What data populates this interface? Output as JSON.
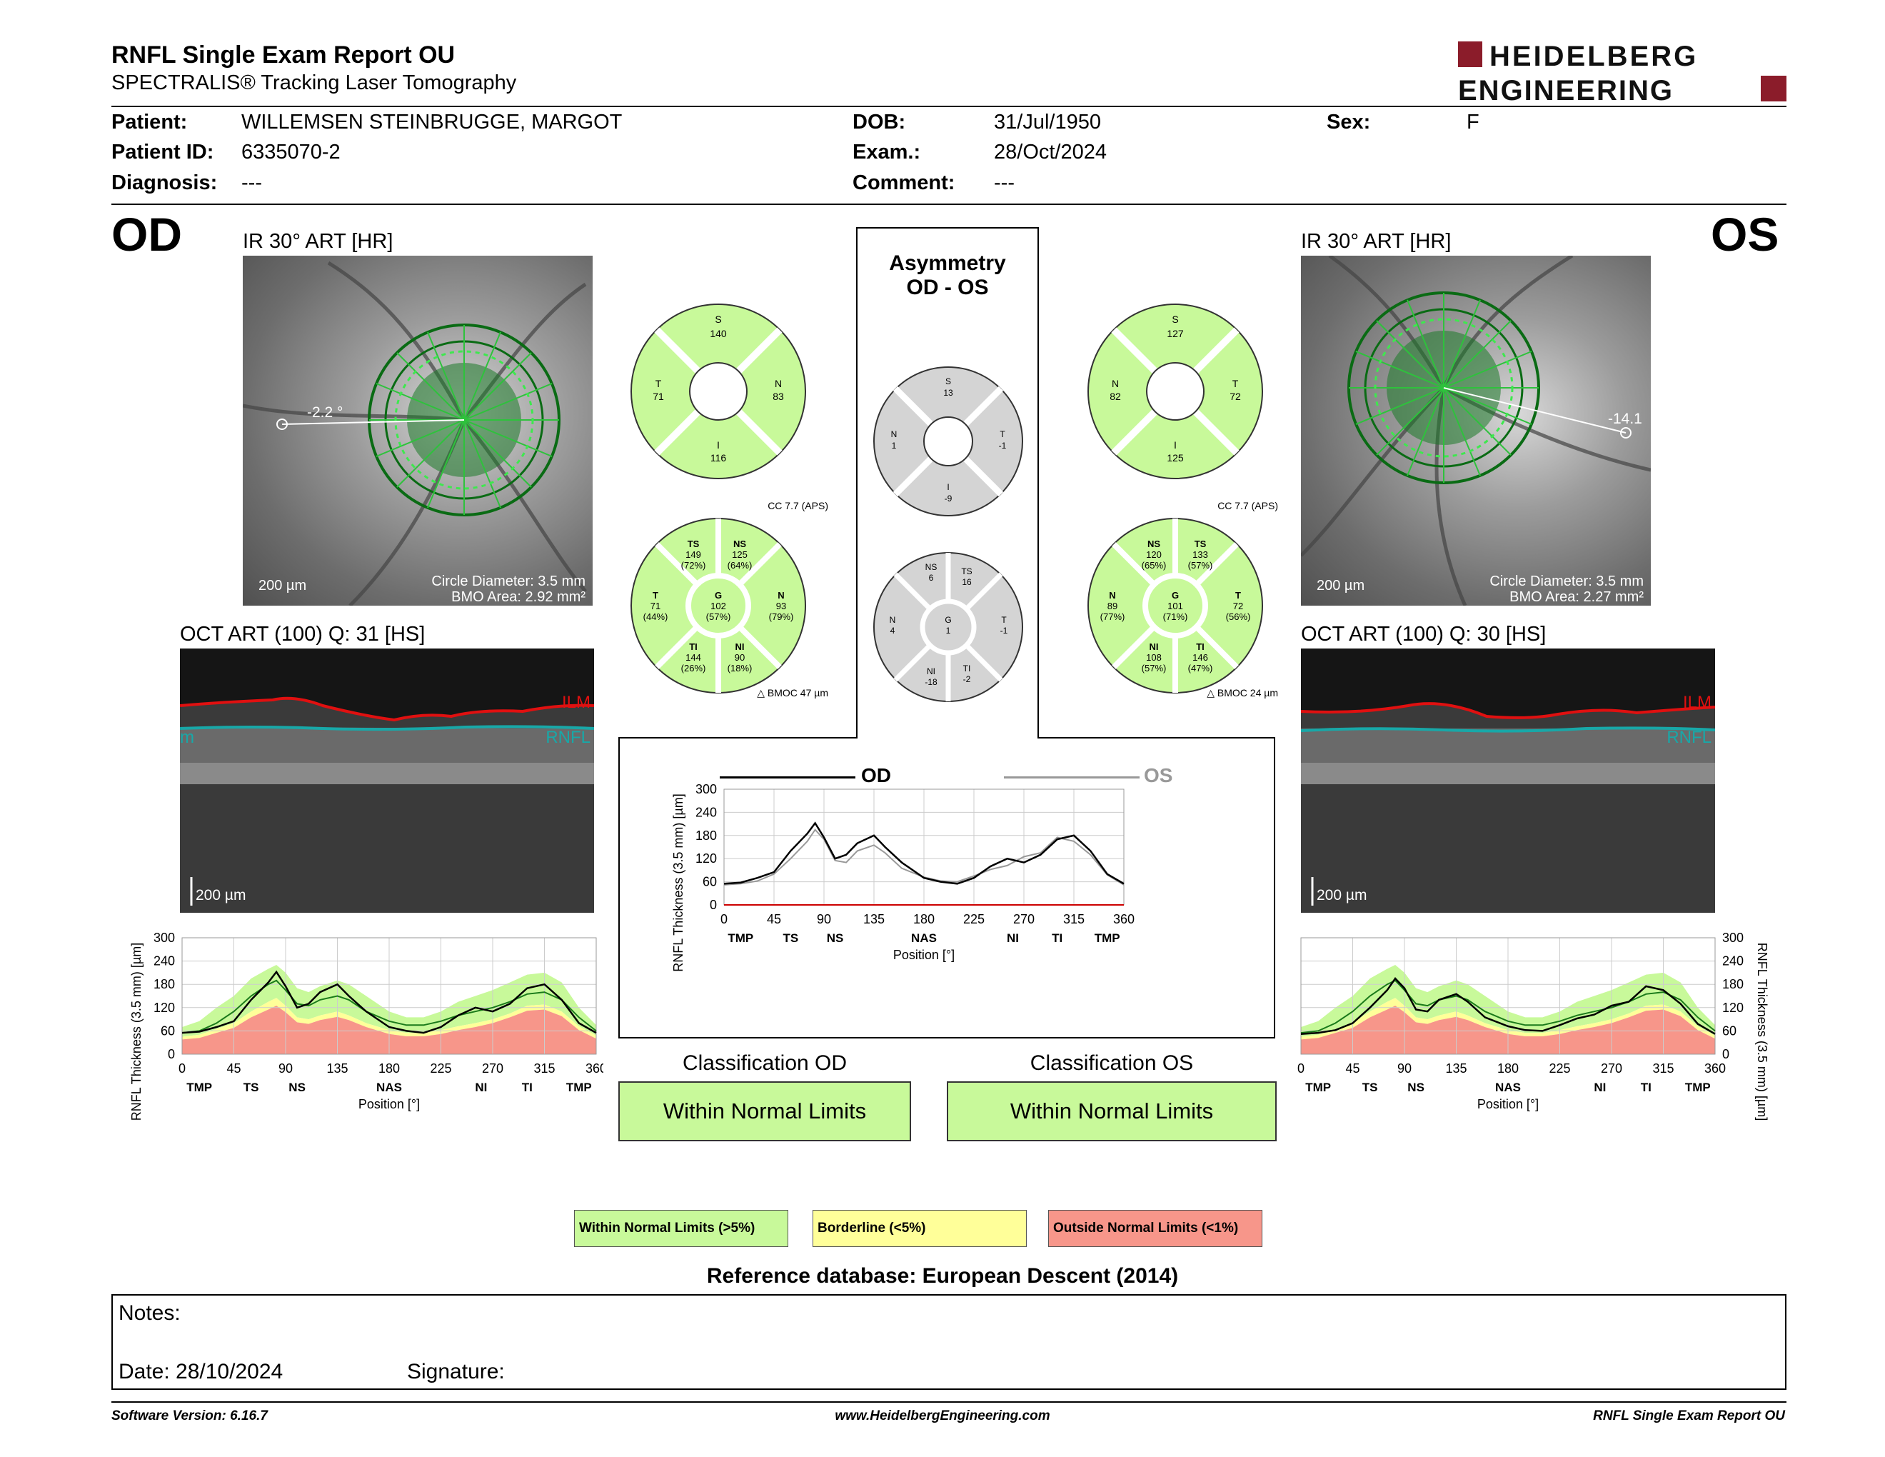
{
  "header": {
    "title": "RNFL Single Exam Report OU",
    "subtitle": "SPECTRALIS® Tracking Laser Tomography",
    "brand_line1": "HEIDELBERG",
    "brand_line2": "ENGINEERING"
  },
  "patient": {
    "patient_label": "Patient:",
    "patient_value": "WILLEMSEN STEINBRUGGE, MARGOT",
    "id_label": "Patient ID:",
    "id_value": "6335070-2",
    "diagnosis_label": "Diagnosis:",
    "diagnosis_value": "---",
    "dob_label": "DOB:",
    "dob_value": "31/Jul/1950",
    "exam_label": "Exam.:",
    "exam_value": "28/Oct/2024",
    "comment_label": "Comment:",
    "comment_value": "---",
    "sex_label": "Sex:",
    "sex_value": "F"
  },
  "od": {
    "eye": "OD",
    "ir_title": "IR 30° ART [HR]",
    "angle": "-2.2 °",
    "scale_bar": "200 µm",
    "circle_diameter": "Circle Diameter: 3.5 mm",
    "bmo_area": "BMO Area: 2.92 mm²",
    "oct_title": "OCT ART (100) Q: 31 [HS]",
    "oct_scale": "200 µm",
    "ilm": "ILM",
    "rnfl": "RNFL",
    "rnfl_edge": "m",
    "quad": {
      "S": "140",
      "T": "71",
      "N": "83",
      "I": "116"
    },
    "cc": "CC 7.7 (APS)",
    "sectors": {
      "TS": [
        "TS",
        "149",
        "(72%)"
      ],
      "NS": [
        "NS",
        "125",
        "(64%)"
      ],
      "T": [
        "T",
        "71",
        "(44%)"
      ],
      "G": [
        "G",
        "102",
        "(57%)"
      ],
      "N": [
        "N",
        "93",
        "(79%)"
      ],
      "TI": [
        "TI",
        "144",
        "(26%)"
      ],
      "NI": [
        "NI",
        "90",
        "(18%)"
      ]
    },
    "bmoc": "BMOC 47 µm",
    "classification_title": "Classification OD",
    "classification": "Within Normal Limits"
  },
  "os": {
    "eye": "OS",
    "ir_title": "IR 30° ART [HR]",
    "angle": "-14.1",
    "scale_bar": "200 µm",
    "circle_diameter": "Circle Diameter: 3.5 mm",
    "bmo_area": "BMO Area: 2.27 mm²",
    "oct_title": "OCT ART (100) Q: 30 [HS]",
    "oct_scale": "200 µm",
    "ilm": "ILM",
    "rnfl": "RNFL",
    "quad": {
      "S": "127",
      "N": "82",
      "T": "72",
      "I": "125"
    },
    "cc": "CC 7.7 (APS)",
    "sectors": {
      "NS": [
        "NS",
        "120",
        "(65%)"
      ],
      "TS": [
        "TS",
        "133",
        "(57%)"
      ],
      "N": [
        "N",
        "89",
        "(77%)"
      ],
      "G": [
        "G",
        "101",
        "(71%)"
      ],
      "T": [
        "T",
        "72",
        "(56%)"
      ],
      "NI": [
        "NI",
        "108",
        "(57%)"
      ],
      "TI": [
        "TI",
        "146",
        "(47%)"
      ]
    },
    "bmoc": "BMOC 24 µm",
    "classification_title": "Classification OS",
    "classification": "Within Normal Limits"
  },
  "asymmetry": {
    "title_line1": "Asymmetry",
    "title_line2": "OD - OS",
    "quad": {
      "S": "13",
      "N": "1",
      "T": "-1",
      "I": "-9"
    },
    "sectors": {
      "NS": [
        "NS",
        "6"
      ],
      "TS": [
        "TS",
        "16"
      ],
      "N": [
        "N",
        "4"
      ],
      "G": [
        "G",
        "1"
      ],
      "T": [
        "T",
        "-1"
      ],
      "NI": [
        "NI",
        "-18"
      ],
      "TI": [
        "TI",
        "-2"
      ]
    },
    "legend_od": "OD",
    "legend_os": "OS"
  },
  "chart_data": [
    {
      "type": "line",
      "name": "od_profile",
      "ylabel": "RNFL Thickness (3.5 mm) [µm]",
      "xlabel": "Position [°]",
      "xlim": [
        0,
        360
      ],
      "ylim": [
        0,
        300
      ],
      "x_ticks": [
        "0",
        "45",
        "90",
        "135",
        "180",
        "225",
        "270",
        "315",
        "360"
      ],
      "y_ticks": [
        "0",
        "60",
        "120",
        "180",
        "240",
        "300"
      ],
      "sector_labels": [
        "TMP",
        "TS",
        "NS",
        "NAS",
        "NI",
        "TI",
        "TMP"
      ],
      "sector_positions": [
        15,
        60,
        100,
        180,
        260,
        300,
        345
      ],
      "x": [
        0,
        15,
        30,
        45,
        60,
        75,
        82,
        90,
        100,
        110,
        120,
        135,
        145,
        160,
        180,
        195,
        210,
        225,
        240,
        255,
        270,
        285,
        300,
        315,
        330,
        345,
        360
      ],
      "series": [
        {
          "values": [
            55,
            58,
            70,
            85,
            140,
            185,
            212,
            175,
            120,
            130,
            160,
            180,
            150,
            110,
            70,
            60,
            55,
            70,
            100,
            120,
            110,
            130,
            170,
            180,
            140,
            80,
            55
          ]
        },
        {
          "values": [
            55,
            60,
            80,
            110,
            150,
            180,
            190,
            165,
            130,
            125,
            140,
            150,
            140,
            110,
            85,
            75,
            75,
            85,
            100,
            110,
            120,
            135,
            155,
            160,
            140,
            95,
            60
          ]
        },
        {
          "values": [
            70,
            85,
            120,
            150,
            195,
            220,
            230,
            210,
            170,
            160,
            175,
            190,
            180,
            150,
            110,
            95,
            95,
            110,
            135,
            150,
            165,
            185,
            205,
            210,
            185,
            120,
            75
          ]
        },
        {
          "values": [
            45,
            50,
            65,
            80,
            110,
            135,
            145,
            125,
            95,
            90,
            100,
            110,
            100,
            80,
            62,
            55,
            55,
            62,
            72,
            80,
            90,
            105,
            125,
            128,
            110,
            72,
            48
          ]
        },
        {
          "values": [
            38,
            42,
            55,
            68,
            95,
            115,
            125,
            108,
            82,
            78,
            88,
            96,
            88,
            70,
            52,
            46,
            46,
            52,
            62,
            70,
            80,
            95,
            112,
            115,
            98,
            62,
            40
          ]
        }
      ]
    },
    {
      "type": "line",
      "name": "asymmetry_profile",
      "ylabel": "RNFL Thickness (3.5 mm) [µm]",
      "xlabel": "Position [°]",
      "xlim": [
        0,
        360
      ],
      "ylim": [
        0,
        300
      ],
      "x_ticks": [
        "0",
        "45",
        "90",
        "135",
        "180",
        "225",
        "270",
        "315",
        "360"
      ],
      "y_ticks": [
        "0",
        "60",
        "120",
        "180",
        "240",
        "300"
      ],
      "sector_labels": [
        "TMP",
        "TS",
        "NS",
        "NAS",
        "NI",
        "TI",
        "TMP"
      ],
      "sector_positions": [
        15,
        60,
        100,
        180,
        260,
        300,
        345
      ],
      "x": [
        0,
        15,
        30,
        45,
        60,
        75,
        82,
        90,
        100,
        110,
        120,
        135,
        145,
        160,
        180,
        195,
        210,
        225,
        240,
        255,
        270,
        285,
        300,
        315,
        330,
        345,
        360
      ],
      "series": [
        {
          "name": "OD",
          "values": [
            55,
            58,
            70,
            85,
            140,
            185,
            212,
            175,
            120,
            130,
            160,
            180,
            150,
            110,
            70,
            60,
            55,
            70,
            100,
            120,
            110,
            130,
            170,
            180,
            140,
            80,
            55
          ]
        },
        {
          "name": "OS",
          "values": [
            52,
            55,
            62,
            80,
            120,
            165,
            195,
            170,
            115,
            110,
            140,
            155,
            135,
            95,
            72,
            62,
            60,
            75,
            92,
            102,
            125,
            135,
            175,
            165,
            130,
            78,
            52
          ]
        }
      ]
    },
    {
      "type": "line",
      "name": "os_profile",
      "ylabel": "RNFL Thickness (3.5 mm) [µm]",
      "xlabel": "Position [°]",
      "xlim": [
        0,
        360
      ],
      "ylim": [
        0,
        300
      ],
      "x_ticks": [
        "0",
        "45",
        "90",
        "135",
        "180",
        "225",
        "270",
        "315",
        "360"
      ],
      "y_ticks": [
        "0",
        "60",
        "120",
        "180",
        "240",
        "300"
      ],
      "sector_labels": [
        "TMP",
        "TS",
        "NS",
        "NAS",
        "NI",
        "TI",
        "TMP"
      ],
      "sector_positions": [
        15,
        60,
        100,
        180,
        260,
        300,
        345
      ],
      "x": [
        0,
        15,
        30,
        45,
        60,
        75,
        82,
        90,
        100,
        110,
        120,
        135,
        145,
        160,
        180,
        195,
        210,
        225,
        240,
        255,
        270,
        285,
        300,
        315,
        330,
        345,
        360
      ],
      "series": [
        {
          "values": [
            52,
            55,
            62,
            80,
            120,
            165,
            195,
            170,
            115,
            110,
            140,
            155,
            135,
            95,
            72,
            62,
            60,
            75,
            92,
            102,
            125,
            135,
            175,
            165,
            130,
            78,
            52
          ]
        },
        {
          "values": [
            55,
            60,
            80,
            110,
            150,
            180,
            190,
            165,
            130,
            125,
            140,
            150,
            140,
            110,
            85,
            75,
            75,
            85,
            100,
            110,
            120,
            135,
            155,
            160,
            140,
            95,
            60
          ]
        },
        {
          "values": [
            70,
            85,
            120,
            150,
            195,
            220,
            230,
            210,
            170,
            160,
            175,
            190,
            180,
            150,
            110,
            95,
            95,
            110,
            135,
            150,
            165,
            185,
            205,
            210,
            185,
            120,
            75
          ]
        },
        {
          "values": [
            45,
            50,
            65,
            80,
            110,
            135,
            145,
            125,
            95,
            90,
            100,
            110,
            100,
            80,
            62,
            55,
            55,
            62,
            72,
            80,
            90,
            105,
            125,
            128,
            110,
            72,
            48
          ]
        },
        {
          "values": [
            38,
            42,
            55,
            68,
            95,
            115,
            125,
            108,
            82,
            78,
            88,
            96,
            88,
            70,
            52,
            46,
            46,
            52,
            62,
            70,
            80,
            95,
            112,
            115,
            98,
            62,
            40
          ]
        }
      ]
    }
  ],
  "legend": {
    "wnl": "Within Normal Limits (>5%)",
    "borderline": "Borderline (<5%)",
    "onl": "Outside Normal Limits (<1%)",
    "reference": "Reference database: European Descent (2014)"
  },
  "notes": {
    "notes_label": "Notes:",
    "date_label": "Date: 28/10/2024",
    "signature_label": "Signature:"
  },
  "footer": {
    "software": "Software Version: 6.16.7",
    "website": "www.HeidelbergEngineering.com",
    "report": "RNFL Single Exam Report OU"
  },
  "colors": {
    "wnl_green": "#c8f99a",
    "borderline_yellow": "#ffff99",
    "outside_red": "#f7968a",
    "asym_grey": "#d4d4d4",
    "brand_red": "#8b1c2a",
    "ilm_red": "#e01010",
    "rnfl_cyan": "#18a8a8"
  }
}
